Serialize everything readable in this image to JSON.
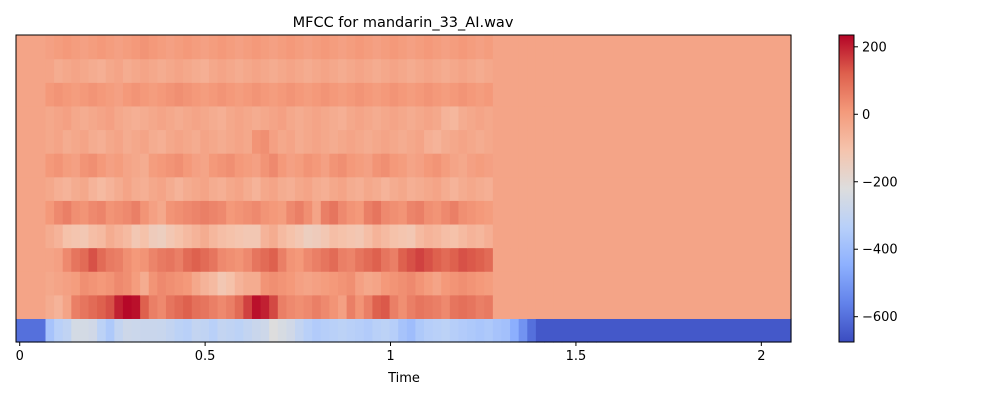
{
  "chart_data": {
    "type": "heatmap",
    "title": "MFCC for mandarin_33_AI.wav",
    "xlabel": "Time",
    "ylabel": "",
    "xlim": [
      -0.01,
      2.08
    ],
    "x_ticks": [
      0,
      0.5,
      1,
      1.5,
      2
    ],
    "x_tick_labels": [
      "0",
      "0.5",
      "1",
      "1.5",
      "2"
    ],
    "colormap": "coolwarm",
    "color_range": [
      -675,
      235
    ],
    "colorbar_ticks": [
      200,
      0,
      -200,
      -400,
      -600
    ],
    "colorbar_tick_labels": [
      "200",
      "0",
      "−200",
      "−400",
      "−600"
    ],
    "rows": 13,
    "columns": 68,
    "frame_duration": 0.0232,
    "values_description": "Row 0 is the lowest coefficient (bottom band); rows ordered bottom to top. Each row lists MFCC values per time frame.",
    "values": [
      [
        -600,
        -600,
        -600,
        -380,
        -330,
        -310,
        -250,
        -250,
        -260,
        -320,
        -360,
        -300,
        -270,
        -275,
        -280,
        -280,
        -285,
        -300,
        -320,
        -330,
        -300,
        -310,
        -330,
        -300,
        -310,
        -320,
        -300,
        -280,
        -270,
        -220,
        -240,
        -260,
        -300,
        -330,
        -350,
        -340,
        -330,
        -320,
        -330,
        -340,
        -350,
        -330,
        -320,
        -340,
        -380,
        -400,
        -360,
        -340,
        -330,
        -320,
        -340,
        -350,
        -360,
        -370,
        -360,
        -380,
        -390,
        -450,
        -520,
        -600,
        -650,
        -650,
        -650,
        -650,
        -650,
        -650,
        -650,
        -650
      ],
      [
        -20,
        -20,
        -20,
        -40,
        -60,
        -20,
        60,
        80,
        100,
        120,
        140,
        200,
        230,
        220,
        120,
        60,
        40,
        80,
        100,
        120,
        90,
        80,
        60,
        40,
        60,
        100,
        160,
        220,
        200,
        150,
        60,
        40,
        30,
        40,
        60,
        40,
        20,
        -10,
        60,
        20,
        60,
        120,
        130,
        60,
        30,
        60,
        80,
        70,
        60,
        40,
        80,
        90,
        80,
        60,
        70,
        -20,
        -20,
        -20,
        -20,
        -20,
        -20,
        -20,
        -20,
        -20,
        -20,
        -20,
        -20,
        -20
      ],
      [
        -20,
        -20,
        -20,
        -30,
        -20,
        -10,
        0,
        30,
        20,
        10,
        20,
        40,
        30,
        0,
        -40,
        20,
        40,
        30,
        20,
        10,
        -30,
        -60,
        -80,
        -120,
        -100,
        -60,
        -40,
        -40,
        20,
        30,
        20,
        10,
        -10,
        -20,
        -10,
        0,
        10,
        20,
        30,
        -10,
        -30,
        -20,
        10,
        20,
        30,
        40,
        20,
        0,
        -20,
        10,
        20,
        30,
        20,
        10,
        0,
        -20,
        -20,
        -20,
        -20,
        -20,
        -20,
        -20,
        -20,
        -20,
        -20,
        -20,
        -20,
        -20
      ],
      [
        -20,
        -20,
        -20,
        -20,
        -10,
        40,
        80,
        100,
        140,
        100,
        70,
        60,
        30,
        10,
        20,
        50,
        70,
        80,
        60,
        100,
        120,
        100,
        80,
        40,
        30,
        20,
        40,
        80,
        100,
        120,
        60,
        20,
        10,
        40,
        60,
        80,
        100,
        60,
        50,
        80,
        100,
        120,
        80,
        60,
        120,
        140,
        160,
        140,
        120,
        100,
        120,
        140,
        130,
        120,
        100,
        -20,
        -20,
        -20,
        -20,
        -20,
        -20,
        -20,
        -20,
        -20,
        -20,
        -20,
        -20,
        -20
      ],
      [
        -20,
        -20,
        -20,
        -40,
        -60,
        -100,
        -110,
        -120,
        -90,
        -80,
        -40,
        -60,
        -80,
        -120,
        -100,
        -140,
        -150,
        -120,
        -100,
        -80,
        -60,
        -40,
        -70,
        -90,
        -100,
        -110,
        -120,
        -120,
        -60,
        -40,
        -80,
        -100,
        -120,
        -150,
        -140,
        -120,
        -90,
        -100,
        -110,
        -120,
        -90,
        -60,
        -80,
        -100,
        -110,
        -120,
        -80,
        -60,
        -70,
        -90,
        -100,
        -80,
        -60,
        -70,
        -50,
        -20,
        -20,
        -20,
        -20,
        -20,
        -20,
        -20,
        -20,
        -20,
        -20,
        -20,
        -20,
        -20
      ],
      [
        -20,
        -20,
        -20,
        10,
        40,
        60,
        30,
        20,
        40,
        50,
        20,
        30,
        40,
        60,
        20,
        -10,
        -30,
        20,
        30,
        40,
        50,
        60,
        50,
        40,
        10,
        20,
        30,
        40,
        20,
        10,
        0,
        40,
        60,
        30,
        -20,
        60,
        80,
        40,
        20,
        10,
        60,
        80,
        40,
        30,
        20,
        50,
        60,
        30,
        20,
        40,
        60,
        30,
        20,
        10,
        0,
        -20,
        -20,
        -20,
        -20,
        -20,
        -20,
        -20,
        -20,
        -20,
        -20,
        -20,
        -20,
        -20
      ],
      [
        -20,
        -20,
        -20,
        -30,
        -50,
        -60,
        -40,
        -30,
        -60,
        -80,
        -60,
        -40,
        -20,
        -40,
        -50,
        -30,
        -20,
        -40,
        -60,
        -40,
        -30,
        -20,
        -40,
        -50,
        -30,
        -20,
        -40,
        -60,
        -30,
        -20,
        -40,
        -50,
        -30,
        -20,
        -40,
        -50,
        -30,
        -20,
        -40,
        -50,
        -30,
        -40,
        -60,
        -40,
        -30,
        -50,
        -40,
        -30,
        -20,
        -40,
        -60,
        -40,
        -30,
        -40,
        -50,
        -20,
        -20,
        -20,
        -20,
        -20,
        -20,
        -20,
        -20,
        -20,
        -20,
        -20,
        -20,
        -20
      ],
      [
        -20,
        -20,
        -20,
        10,
        20,
        0,
        -10,
        20,
        30,
        10,
        -10,
        0,
        -20,
        -30,
        -40,
        0,
        10,
        20,
        30,
        10,
        -10,
        -20,
        10,
        20,
        30,
        10,
        0,
        -10,
        20,
        40,
        10,
        -10,
        0,
        20,
        10,
        -10,
        20,
        30,
        10,
        0,
        -10,
        20,
        30,
        10,
        0,
        -20,
        -10,
        10,
        20,
        0,
        -20,
        -30,
        -10,
        0,
        -10,
        -20,
        -20,
        -20,
        -20,
        -20,
        -20,
        -20,
        -20,
        -20,
        -20,
        -20,
        -20,
        -20
      ],
      [
        -20,
        -20,
        -20,
        -30,
        -20,
        -40,
        -30,
        -20,
        -40,
        -50,
        -30,
        -20,
        -40,
        -30,
        -20,
        -40,
        -50,
        -30,
        -20,
        -30,
        -40,
        -20,
        -30,
        -40,
        -30,
        -20,
        -30,
        20,
        30,
        -10,
        -30,
        -20,
        -40,
        -30,
        -20,
        -30,
        -40,
        -30,
        -20,
        -30,
        -40,
        -30,
        -20,
        -30,
        -40,
        -30,
        -20,
        -50,
        -60,
        -40,
        -30,
        -20,
        -30,
        -40,
        -30,
        -20,
        -20,
        -20,
        -20,
        -20,
        -20,
        -20,
        -20,
        -20,
        -20,
        -20,
        -20,
        -20
      ],
      [
        -20,
        -20,
        -20,
        -30,
        -20,
        -10,
        -30,
        -40,
        -30,
        -20,
        -10,
        -30,
        -40,
        -50,
        -40,
        -30,
        -20,
        -30,
        -40,
        -30,
        -20,
        -30,
        -40,
        -50,
        -30,
        -20,
        -30,
        -40,
        -30,
        -20,
        -10,
        -30,
        -40,
        -30,
        -20,
        -30,
        -40,
        -50,
        -30,
        -20,
        -30,
        -40,
        -30,
        -20,
        -30,
        -40,
        -30,
        -20,
        -30,
        -60,
        -70,
        -40,
        -30,
        -20,
        -30,
        -20,
        -20,
        -20,
        -20,
        -20,
        -20,
        -20,
        -20,
        -20,
        -20,
        -20,
        -20,
        -20
      ],
      [
        -20,
        -20,
        -20,
        10,
        20,
        10,
        0,
        10,
        20,
        10,
        0,
        -10,
        10,
        20,
        10,
        0,
        10,
        20,
        30,
        20,
        10,
        0,
        10,
        20,
        10,
        0,
        10,
        20,
        10,
        0,
        10,
        20,
        10,
        0,
        10,
        20,
        10,
        0,
        10,
        20,
        10,
        0,
        10,
        20,
        10,
        0,
        10,
        20,
        10,
        0,
        10,
        20,
        10,
        0,
        10,
        -20,
        -20,
        -20,
        -20,
        -20,
        -20,
        -20,
        -20,
        -20,
        -20,
        -20,
        -20,
        -20
      ],
      [
        -20,
        -20,
        -20,
        -20,
        -40,
        -30,
        -20,
        -30,
        -40,
        -50,
        -30,
        -20,
        -40,
        -30,
        -20,
        -30,
        -40,
        -30,
        -20,
        -30,
        -40,
        -50,
        -30,
        -20,
        -30,
        -40,
        -30,
        -20,
        -30,
        -40,
        -30,
        -20,
        -30,
        -40,
        -30,
        -20,
        -30,
        -40,
        -30,
        -20,
        -30,
        -40,
        -30,
        -20,
        -30,
        -40,
        -30,
        -20,
        -30,
        -40,
        -30,
        -20,
        -30,
        -40,
        -30,
        -20,
        -20,
        -20,
        -20,
        -20,
        -20,
        -20,
        -20,
        -20,
        -20,
        -20,
        -20,
        -20
      ],
      [
        -20,
        -20,
        -20,
        -10,
        0,
        10,
        0,
        -10,
        0,
        10,
        0,
        -10,
        0,
        10,
        20,
        10,
        0,
        -10,
        0,
        10,
        0,
        -10,
        0,
        10,
        0,
        -10,
        0,
        10,
        0,
        -10,
        0,
        10,
        0,
        -10,
        0,
        10,
        0,
        -10,
        0,
        10,
        0,
        -10,
        0,
        10,
        0,
        -10,
        0,
        10,
        0,
        -10,
        0,
        10,
        0,
        -10,
        0,
        -20,
        -20,
        -20,
        -20,
        -20,
        -20,
        -20,
        -20,
        -20,
        -20,
        -20,
        -20,
        -20
      ]
    ]
  }
}
